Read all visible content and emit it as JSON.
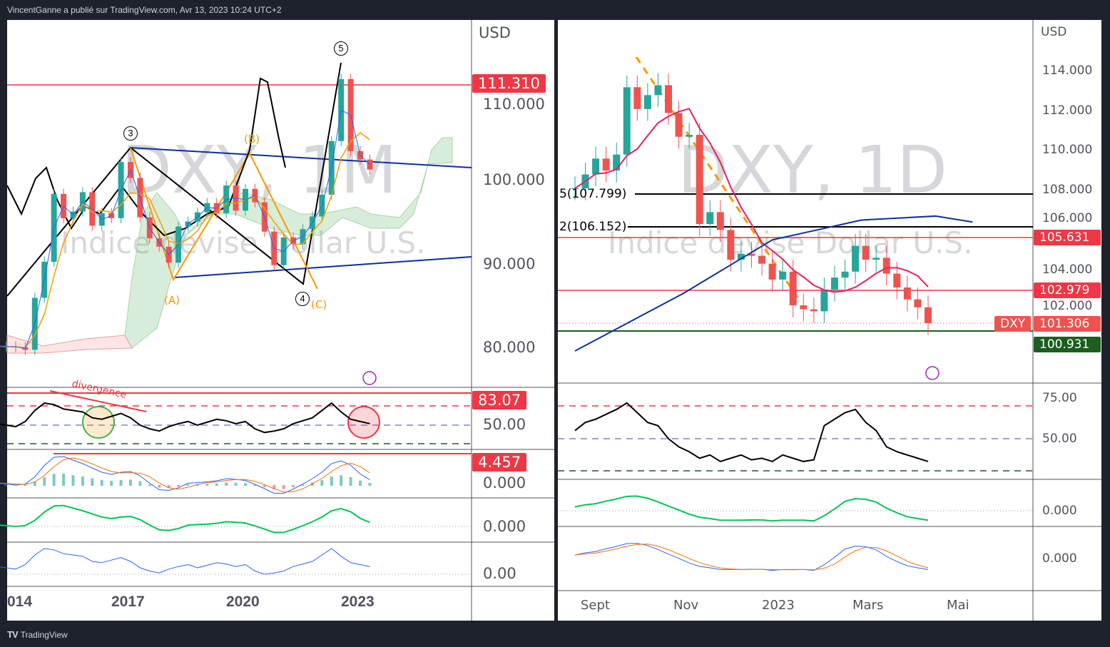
{
  "header": {
    "credit": "VincentGanne a publié sur TradingView.com, Avr 13, 2023 10:24 UTC+2"
  },
  "footer": {
    "brand_logo": "TV",
    "brand": "TradingView"
  },
  "left": {
    "watermark_symbol": "DXY, 1M",
    "watermark_name": "Indice devise Dollar U.S.",
    "currency": "USD",
    "price_ticks": [
      "110.000",
      "100.000",
      "90.000",
      "80.000"
    ],
    "tags": {
      "resistance": "111.310",
      "rsi": "83.07",
      "macd": "4.457"
    },
    "rsi_tick": "50.00",
    "macd_tick": "0.000",
    "mom_tick": "0.000",
    "vol_tick": "0.00",
    "x_ticks": [
      "014",
      "2017",
      "2020",
      "2023"
    ],
    "annotations": {
      "w3": "3",
      "w4": "4",
      "w5": "5",
      "a": "(A)",
      "b": "(B)",
      "c": "(C)",
      "divergence": "divergence"
    }
  },
  "right": {
    "watermark_symbol": "DXY, 1D",
    "watermark_name": "Indice devise Dollar U.S.",
    "currency": "USD",
    "price_ticks": [
      "114.000",
      "112.000",
      "110.000",
      "108.000",
      "106.000",
      "104.000",
      "102.000"
    ],
    "tags": {
      "r1": "105.631",
      "r2": "102.979",
      "symbol": "DXY",
      "last": "101.306",
      "support": "100.931"
    },
    "fib": {
      "f1": "5(107.799)",
      "f2": "2(106.152)"
    },
    "rsi_ticks": [
      "75.00",
      "50.00"
    ],
    "mom_tick": "0.000",
    "macd_tick": "0.000",
    "x_ticks": [
      "Sept",
      "Nov",
      "2023",
      "Mars",
      "Mai"
    ]
  },
  "colors": {
    "up": "#26a69a",
    "down": "#ef5350",
    "red": "#f23645",
    "green": "#1b5e20",
    "blue": "#0d2ea0",
    "pink": "#e91e63"
  },
  "chart_data": [
    {
      "type": "candlestick",
      "title": "DXY, 1M",
      "period": "quarterly approximation",
      "start_year": 2013.5,
      "step_years": 0.25,
      "closes": [
        80.2,
        80.2,
        80.1,
        79.8,
        86.0,
        90.3,
        98.4,
        95.5,
        96.3,
        98.6,
        94.6,
        96.1,
        95.5,
        102.2,
        100.3,
        95.6,
        93.1,
        92.1,
        90.2,
        94.5,
        95.1,
        96.2,
        97.3,
        96.1,
        99.4,
        96.4,
        99.0,
        97.4,
        93.9,
        89.9,
        93.2,
        92.4,
        94.2,
        95.7,
        98.3,
        104.7,
        112.1,
        103.5,
        102.5,
        101.3
      ],
      "rsi": [
        52,
        50,
        48,
        55,
        70,
        80,
        78,
        72,
        70,
        68,
        60,
        58,
        62,
        66,
        60,
        50,
        45,
        42,
        48,
        52,
        55,
        50,
        54,
        58,
        56,
        52,
        55,
        45,
        40,
        42,
        45,
        52,
        56,
        60,
        70,
        80,
        68,
        58,
        55,
        52
      ],
      "hlines": {
        "resistance": 111.31
      },
      "ylim": [
        76,
        118
      ]
    },
    {
      "type": "candlestick",
      "title": "DXY, 1D",
      "period": "weekly approximation",
      "start_day_from_sep1": -13,
      "step_days": 7,
      "closes": [
        108.1,
        108.8,
        109.6,
        109.0,
        109.8,
        113.2,
        112.1,
        112.8,
        113.3,
        111.9,
        110.7,
        110.8,
        106.3,
        106.9,
        106.0,
        104.5,
        104.8,
        104.7,
        104.3,
        103.5,
        103.9,
        102.2,
        102.0,
        101.9,
        103.0,
        103.6,
        103.9,
        105.2,
        104.5,
        104.6,
        103.8,
        103.1,
        102.5,
        102.1,
        101.3
      ],
      "rsi": [
        55,
        60,
        62,
        65,
        68,
        72,
        66,
        60,
        58,
        50,
        45,
        42,
        38,
        40,
        36,
        38,
        40,
        37,
        38,
        36,
        40,
        38,
        36,
        37,
        58,
        62,
        66,
        68,
        60,
        55,
        45,
        42,
        40,
        38,
        36
      ],
      "ma200": [
        [
          -13,
          99.9
        ],
        [
          60,
          102.8
        ],
        [
          120,
          105.5
        ],
        [
          180,
          106.5
        ],
        [
          230,
          106.7
        ],
        [
          255,
          106.4
        ]
      ],
      "hlines": {
        "fib_5": 107.799,
        "fib_2": 106.152,
        "r1": 105.631,
        "r2": 102.979,
        "last": 101.306,
        "support": 100.931
      },
      "ylim": [
        99,
        115
      ]
    }
  ]
}
